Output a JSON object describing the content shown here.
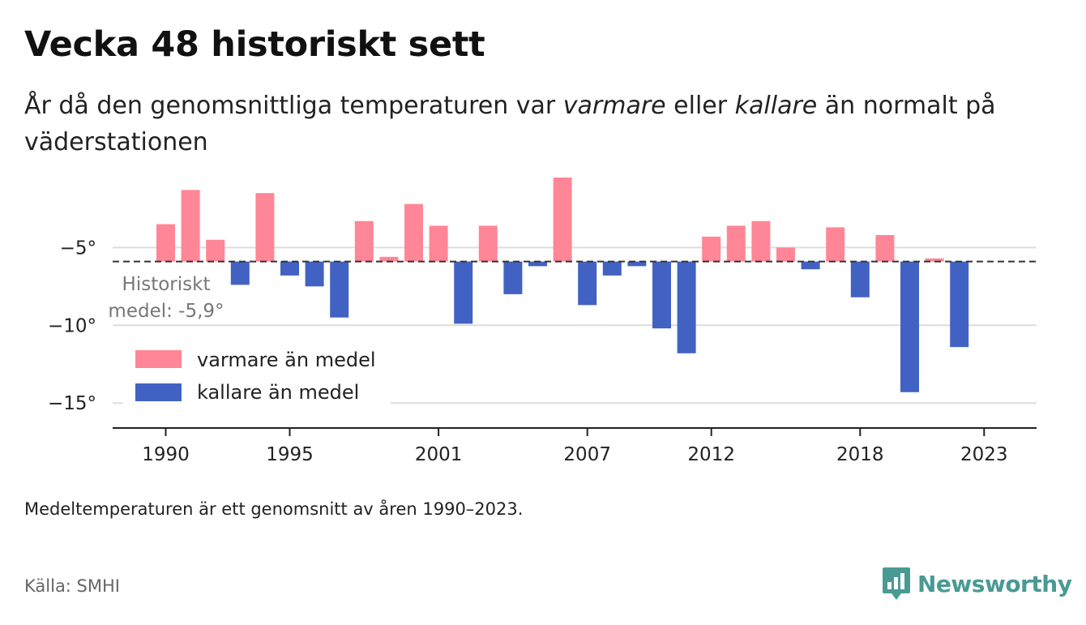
{
  "title": "Vecka 48 historiskt sett",
  "subtitle": {
    "part1": "År då den genomsnittliga temperaturen var ",
    "warmer": "varmare",
    "part2": " eller ",
    "colder": "kallare",
    "part3": " än normalt på väderstationen"
  },
  "note": "Medeltemperaturen är ett genomsnitt av åren 1990–2023.",
  "source": "Källa: SMHI",
  "brand": "Newsworthy",
  "colors": {
    "warm": "#ff8696",
    "cold": "#4262c3",
    "brand": "#4a9a94"
  },
  "chart_data": {
    "type": "bar",
    "baseline": -5.9,
    "baseline_label_line1": "Historiskt",
    "baseline_label_line2": "medel: -5,9°",
    "ylim": [
      -16.5,
      -0.5
    ],
    "yticks": [
      -5,
      -10,
      -15
    ],
    "ytick_labels": [
      "−5°",
      "−10°",
      "−15°"
    ],
    "x_labels": [
      {
        "year": 1990,
        "label": "1990"
      },
      {
        "year": 1995,
        "label": "1995"
      },
      {
        "year": 2001,
        "label": "2001"
      },
      {
        "year": 2007,
        "label": "2007"
      },
      {
        "year": 2012,
        "label": "2012"
      },
      {
        "year": 2018,
        "label": "2018"
      },
      {
        "year": 2023,
        "label": "2023"
      }
    ],
    "legend": {
      "warm": "varmare än medel",
      "cold": "kallare än medel"
    },
    "years": [
      1990,
      1991,
      1992,
      1993,
      1994,
      1995,
      1996,
      1997,
      1998,
      1999,
      2000,
      2001,
      2002,
      2003,
      2004,
      2005,
      2006,
      2007,
      2008,
      2009,
      2010,
      2011,
      2012,
      2013,
      2014,
      2015,
      2016,
      2017,
      2018,
      2019,
      2020,
      2021,
      2022,
      2023
    ],
    "values": [
      -3.5,
      -1.3,
      -4.5,
      -7.4,
      -1.5,
      -6.8,
      -7.5,
      -9.5,
      -3.3,
      -5.6,
      -2.2,
      -3.6,
      -9.9,
      -3.6,
      -8.0,
      -6.2,
      -0.5,
      -8.7,
      -6.8,
      -6.2,
      -10.2,
      -11.8,
      -4.3,
      -3.6,
      -3.3,
      -5.0,
      -6.4,
      -3.7,
      -8.2,
      -4.2,
      -14.3,
      -5.7,
      -11.4,
      null
    ]
  }
}
